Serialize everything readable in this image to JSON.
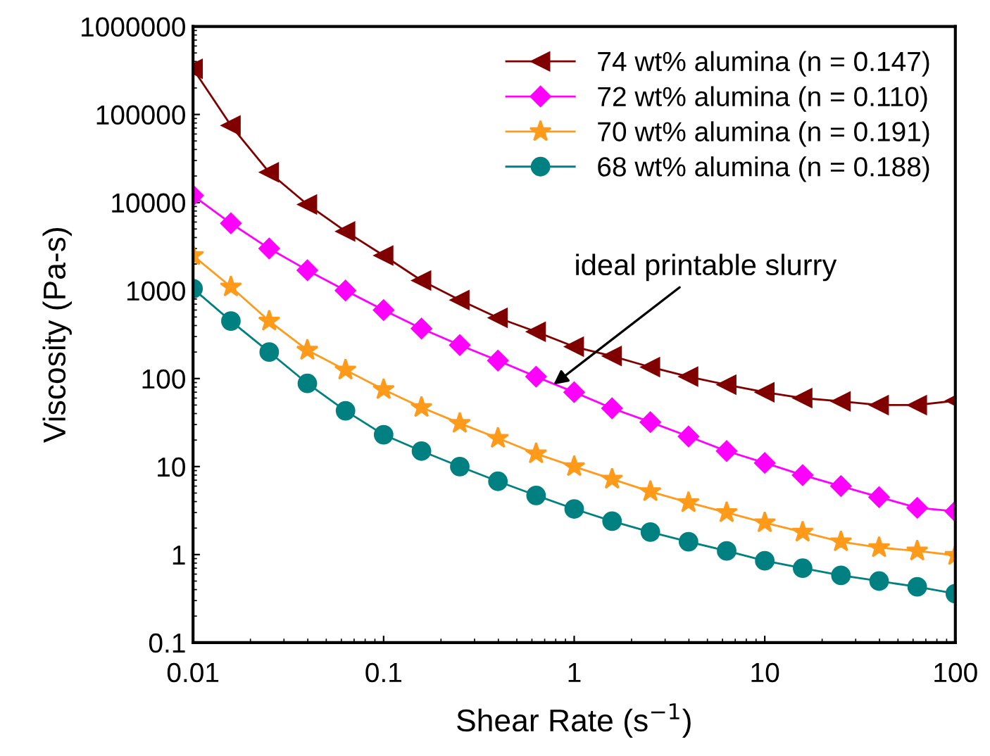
{
  "chart_data": {
    "type": "line",
    "xlabel": "Shear Rate (s$^{−1}$)",
    "ylabel": "Viscosity (Pa-s)",
    "x": [
      0.01,
      0.0158,
      0.0251,
      0.0398,
      0.0631,
      0.1,
      0.158,
      0.251,
      0.398,
      0.631,
      1,
      1.58,
      2.51,
      3.98,
      6.31,
      10,
      15.8,
      25.1,
      39.8,
      63.1,
      100
    ],
    "log": "xy",
    "xlim": [
      0.01,
      100
    ],
    "ylim": [
      0.1,
      1000000
    ],
    "xticks": [
      0.01,
      0.1,
      1,
      10,
      100
    ],
    "yticks": [
      0.1,
      1,
      10,
      100,
      1000,
      10000,
      100000,
      1000000
    ],
    "grid": false,
    "legend": "top right",
    "line_style": "solid",
    "series": [
      {
        "name": "74 wt% alumina (n = 0.147)",
        "color": "#800000",
        "marker": "triangle",
        "values": [
          330000,
          75000,
          22000,
          9500,
          4700,
          2500,
          1300,
          780,
          490,
          340,
          230,
          180,
          135,
          105,
          85,
          70,
          60,
          55,
          50,
          50,
          56
        ]
      },
      {
        "name": "72 wt% alumina (n = 0.110)",
        "color": "#ff00ff",
        "marker": "diamond",
        "values": [
          12000,
          5800,
          3000,
          1700,
          1000,
          600,
          370,
          240,
          160,
          105,
          70,
          46,
          32,
          22,
          15,
          11,
          8,
          6,
          4.5,
          3.4,
          3.1
        ]
      },
      {
        "name": "70 wt% alumina (n = 0.191)",
        "color": "#ff9a1a",
        "marker": "star",
        "values": [
          2500,
          1100,
          450,
          210,
          125,
          75,
          47,
          31,
          21,
          14,
          10,
          7.2,
          5.2,
          3.9,
          3.0,
          2.3,
          1.8,
          1.4,
          1.2,
          1.1,
          0.98
        ]
      },
      {
        "name": "68 wt% alumina (n = 0.188)",
        "color": "#008080",
        "marker": "circle",
        "values": [
          1050,
          450,
          200,
          88,
          43,
          23,
          15,
          10,
          6.8,
          4.7,
          3.3,
          2.4,
          1.8,
          1.4,
          1.1,
          0.85,
          0.7,
          0.58,
          0.5,
          0.43,
          0.36
        ]
      }
    ],
    "annotations": [
      {
        "text": "ideal printable slurry",
        "x": 0.75,
        "y": 80
      }
    ]
  }
}
